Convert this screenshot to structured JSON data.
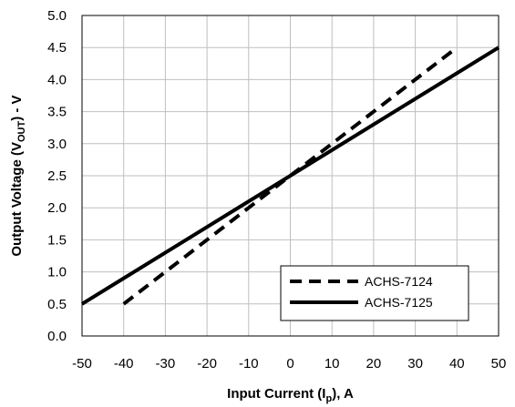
{
  "chart_data": {
    "type": "line",
    "xlabel": "Input Current (I",
    "xlabel_sub": "p",
    "xlabel_tail": "), A",
    "ylabel": "Output Voltage (V",
    "ylabel_sub": "OUT",
    "ylabel_tail": ") - V",
    "xlim": [
      -50,
      50
    ],
    "ylim": [
      0,
      5
    ],
    "xticks": [
      "-50",
      "-40",
      "-30",
      "-20",
      "-10",
      "0",
      "10",
      "20",
      "30",
      "40",
      "50"
    ],
    "yticks": [
      "0.0",
      "0.5",
      "1.0",
      "1.5",
      "2.0",
      "2.5",
      "3.0",
      "3.5",
      "4.0",
      "4.5",
      "5.0"
    ],
    "grid": true,
    "legend_position": "bottom-right",
    "series": [
      {
        "name": "ACHS-7124",
        "style": "dashed",
        "color": "#000000",
        "x": [
          -40,
          40
        ],
        "y": [
          0.5,
          4.5
        ]
      },
      {
        "name": "ACHS-7125",
        "style": "solid",
        "color": "#000000",
        "x": [
          -50,
          50
        ],
        "y": [
          0.5,
          4.5
        ]
      }
    ]
  }
}
